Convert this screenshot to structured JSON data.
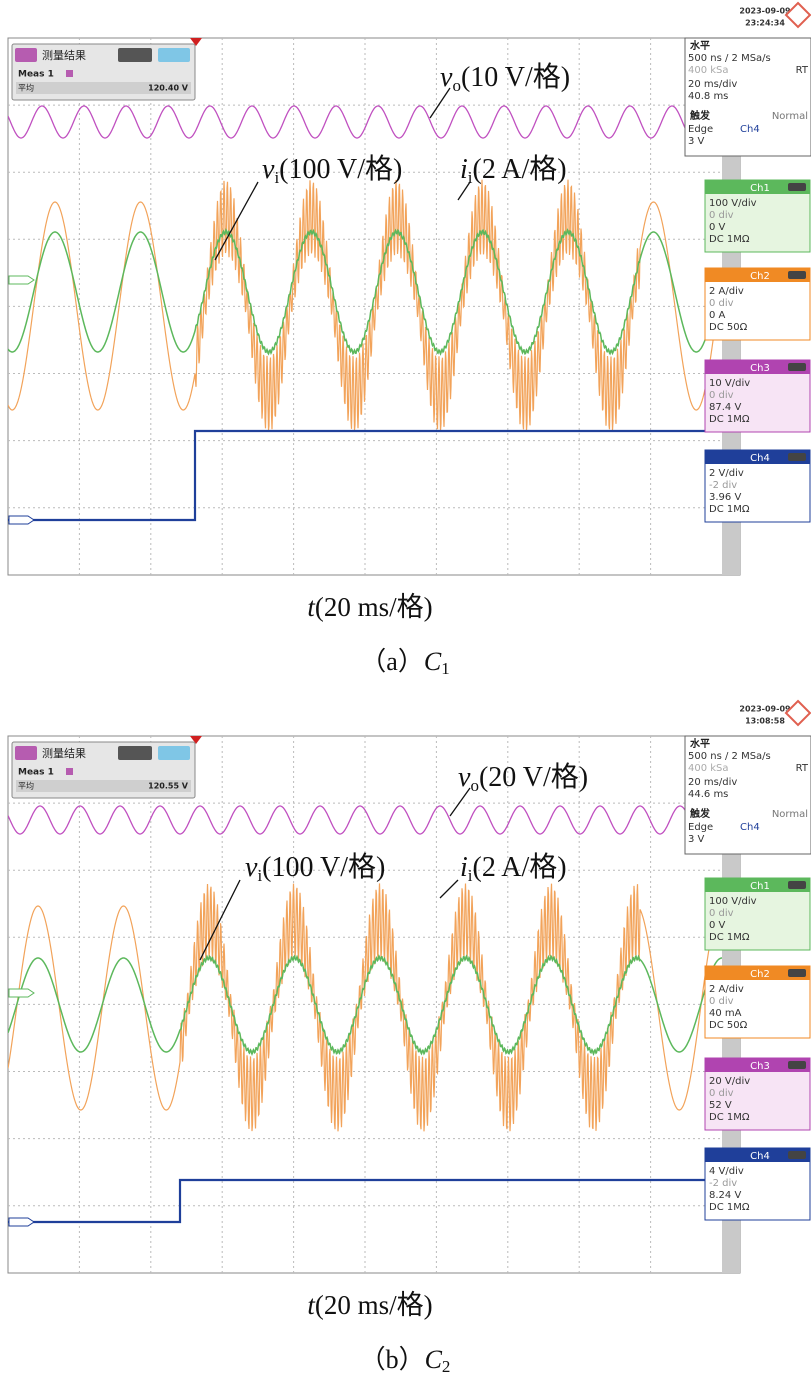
{
  "panels": [
    {
      "date": "2023-09-09",
      "time": "23:24:34",
      "measure": {
        "title": "测量结果",
        "name": "Meas 1",
        "label": "平均",
        "value": "120.40 V"
      },
      "horizontal": {
        "title": "水平",
        "rate": "500 ns / 2 MSa/s",
        "mode": "RT",
        "samples": "400 kSa",
        "timebase": "20 ms/div",
        "position": "40.8 ms"
      },
      "trigger": {
        "title": "触发",
        "mode": "Normal",
        "type": "Edge",
        "source": "Ch4",
        "level": "3 V"
      },
      "channels": [
        {
          "name": "Ch1",
          "scale": "100 V/div",
          "offset": "0 div",
          "level": "0 V",
          "coupling": "DC 1MΩ"
        },
        {
          "name": "Ch2",
          "scale": "2 A/div",
          "offset": "0 div",
          "level": "0 A",
          "coupling": "DC 50Ω"
        },
        {
          "name": "Ch3",
          "scale": "10 V/div",
          "offset": "0 div",
          "level": "87.4 V",
          "coupling": "DC 1MΩ"
        },
        {
          "name": "Ch4",
          "scale": "2 V/div",
          "offset": "-2 div",
          "level": "3.96 V",
          "coupling": "DC 1MΩ"
        }
      ],
      "annotations": [
        {
          "symbol": "v",
          "subscript": "o",
          "scale": "(10 V/格)"
        },
        {
          "symbol": "v",
          "subscript": "i",
          "scale": "(100 V/格)"
        },
        {
          "symbol": "i",
          "subscript": "i",
          "scale": "(2 A/格)"
        }
      ],
      "xlabel": {
        "symbol": "t",
        "scale": "(20 ms/格)"
      },
      "caption": {
        "label": "（a）",
        "symbol": "C",
        "subscript": "1"
      }
    },
    {
      "date": "2023-09-09",
      "time": "13:08:58",
      "measure": {
        "title": "测量结果",
        "name": "Meas 1",
        "label": "平均",
        "value": "120.55 V"
      },
      "horizontal": {
        "title": "水平",
        "rate": "500 ns / 2 MSa/s",
        "mode": "RT",
        "samples": "400 kSa",
        "timebase": "20 ms/div",
        "position": "44.6 ms"
      },
      "trigger": {
        "title": "触发",
        "mode": "Normal",
        "type": "Edge",
        "source": "Ch4",
        "level": "3 V"
      },
      "channels": [
        {
          "name": "Ch1",
          "scale": "100 V/div",
          "offset": "0 div",
          "level": "0 V",
          "coupling": "DC 1MΩ"
        },
        {
          "name": "Ch2",
          "scale": "2 A/div",
          "offset": "0 div",
          "level": "40 mA",
          "coupling": "DC 50Ω"
        },
        {
          "name": "Ch3",
          "scale": "20 V/div",
          "offset": "0 div",
          "level": "52 V",
          "coupling": "DC 1MΩ"
        },
        {
          "name": "Ch4",
          "scale": "4 V/div",
          "offset": "-2 div",
          "level": "8.24 V",
          "coupling": "DC 1MΩ"
        }
      ],
      "annotations": [
        {
          "symbol": "v",
          "subscript": "o",
          "scale": "(20 V/格)"
        },
        {
          "symbol": "v",
          "subscript": "i",
          "scale": "(100 V/格)"
        },
        {
          "symbol": "i",
          "subscript": "i",
          "scale": "(2 A/格)"
        }
      ],
      "xlabel": {
        "symbol": "t",
        "scale": "(20 ms/格)"
      },
      "caption": {
        "label": "（b）",
        "symbol": "C",
        "subscript": "2"
      }
    }
  ]
}
